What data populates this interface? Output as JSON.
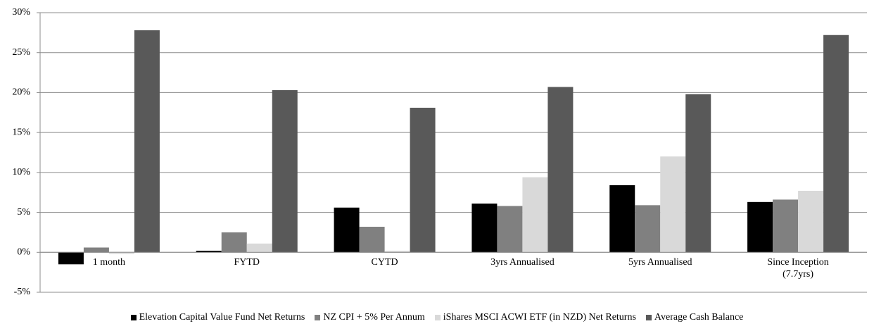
{
  "chart_data": {
    "type": "bar",
    "categories": [
      "1 month",
      "FYTD",
      "CYTD",
      "3yrs Annualised",
      "5yrs Annualised",
      "Since Inception (7.7yrs)"
    ],
    "series": [
      {
        "name": "Elevation Capital Value Fund Net Returns",
        "color": "#000000",
        "values": [
          -1.5,
          0.2,
          5.6,
          6.1,
          8.4,
          6.3
        ]
      },
      {
        "name": "NZ CPI + 5% Per Annum",
        "color": "#808080",
        "values": [
          0.6,
          2.5,
          3.2,
          5.8,
          5.9,
          6.6
        ]
      },
      {
        "name": "iShares MSCI ACWI ETF (in NZD) Net Returns",
        "color": "#d9d9d9",
        "values": [
          -0.2,
          1.1,
          0.2,
          9.4,
          12.0,
          7.7
        ]
      },
      {
        "name": "Average Cash Balance",
        "color": "#595959",
        "values": [
          27.8,
          20.3,
          18.1,
          20.7,
          19.8,
          27.2
        ]
      }
    ],
    "ylim": [
      -5,
      30
    ],
    "yticks": [
      {
        "value": -5,
        "label": "-5%"
      },
      {
        "value": 0,
        "label": "0%"
      },
      {
        "value": 5,
        "label": "5%"
      },
      {
        "value": 10,
        "label": "10%"
      },
      {
        "value": 15,
        "label": "15%"
      },
      {
        "value": 20,
        "label": "20%"
      },
      {
        "value": 25,
        "label": "25%"
      },
      {
        "value": 30,
        "label": "30%"
      }
    ],
    "grid": true,
    "legend": "bottom"
  }
}
